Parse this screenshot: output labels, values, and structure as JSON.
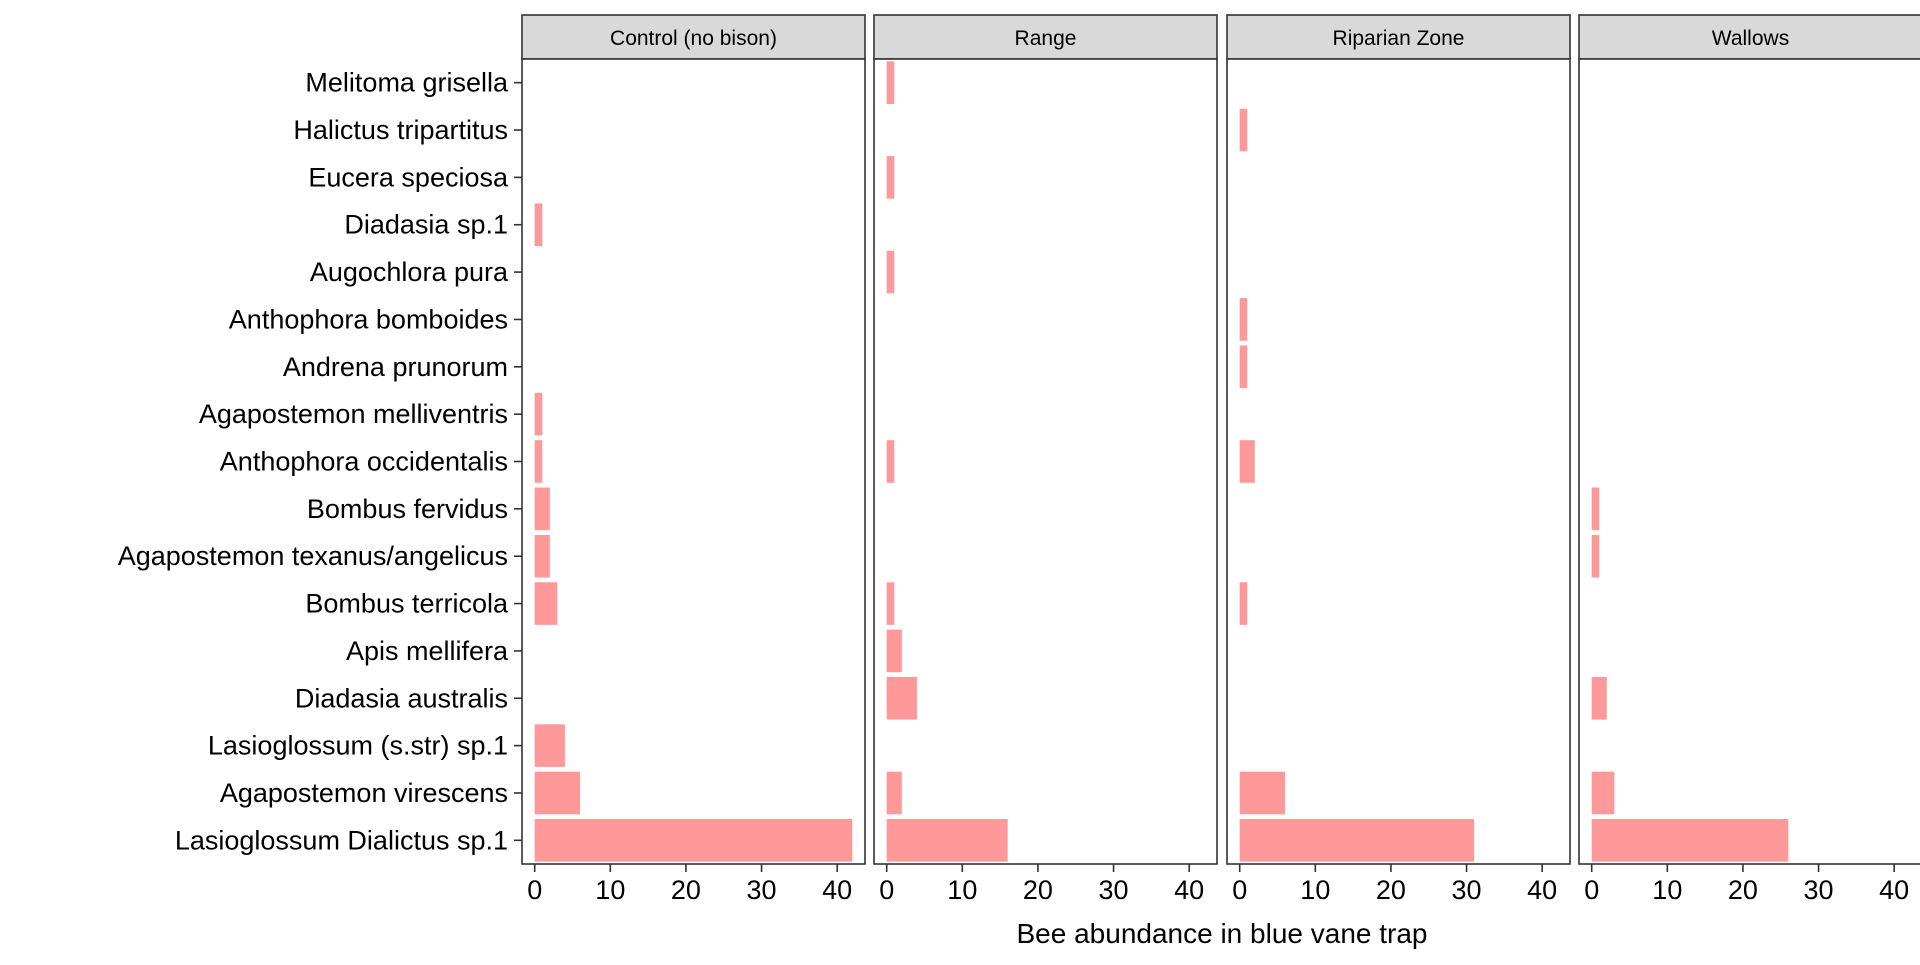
{
  "chart_data": {
    "type": "bar",
    "orientation": "horizontal",
    "xlabel": "Bee abundance in blue vane trap",
    "ylabel": "",
    "xlim": [
      0,
      42
    ],
    "xticks": [
      0,
      10,
      20,
      30,
      40
    ],
    "grid": false,
    "categories": [
      "Melitoma grisella",
      "Halictus tripartitus",
      "Eucera speciosa",
      "Diadasia sp.1",
      "Augochlora pura",
      "Anthophora bomboides",
      "Andrena prunorum",
      "Agapostemon melliventris",
      "Anthophora occidentalis",
      "Bombus fervidus",
      "Agapostemon texanus/angelicus",
      "Bombus terricola",
      "Apis mellifera",
      "Diadasia australis",
      "Lasioglossum (s.str) sp.1",
      "Agapostemon virescens",
      "Lasioglossum Dialictus sp.1"
    ],
    "panels": [
      {
        "name": "Control (no bison)",
        "values": [
          0,
          0,
          0,
          1,
          0,
          0,
          0,
          1,
          1,
          2,
          2,
          3,
          0,
          0,
          4,
          6,
          42
        ]
      },
      {
        "name": "Range",
        "values": [
          1,
          0,
          1,
          0,
          1,
          0,
          0,
          0,
          1,
          0,
          0,
          1,
          2,
          4,
          0,
          2,
          16
        ]
      },
      {
        "name": "Riparian Zone",
        "values": [
          0,
          1,
          0,
          0,
          0,
          1,
          1,
          0,
          2,
          0,
          0,
          1,
          0,
          0,
          0,
          6,
          31
        ]
      },
      {
        "name": "Wallows",
        "values": [
          0,
          0,
          0,
          0,
          0,
          0,
          0,
          0,
          0,
          1,
          1,
          0,
          0,
          2,
          0,
          3,
          26
        ]
      }
    ],
    "colors": {
      "bar": "#ff9999",
      "strip_bg": "#d9d9d9",
      "panel_border": "#333333"
    }
  }
}
